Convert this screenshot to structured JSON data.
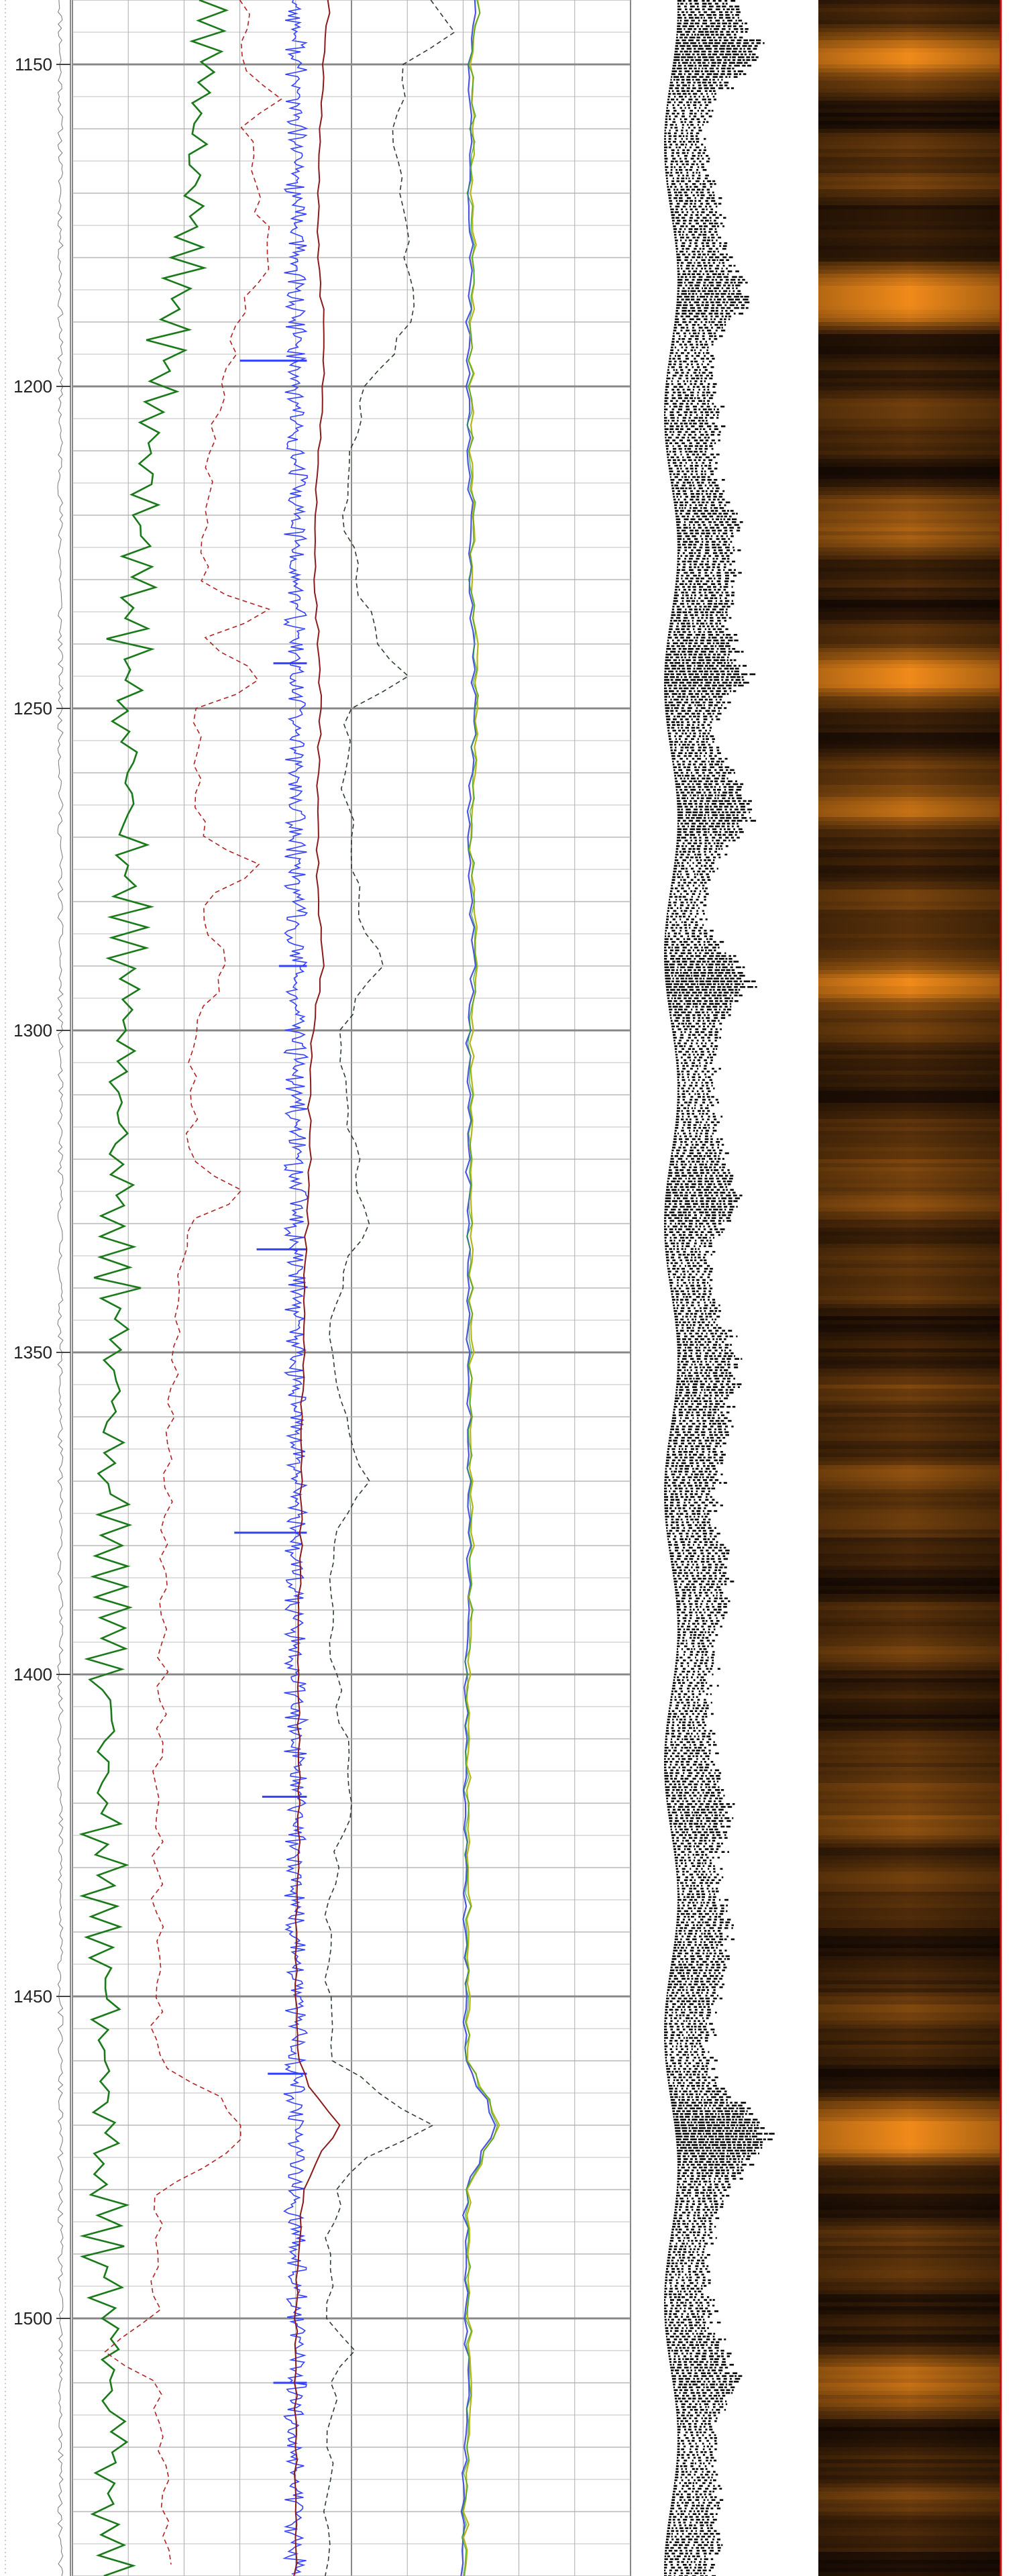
{
  "chart_data": {
    "type": "line",
    "title": "",
    "xlabel": "",
    "ylabel": "",
    "depth_range": [
      1140,
      1540
    ],
    "depth_ticks": [
      1150,
      1200,
      1250,
      1300,
      1350,
      1400,
      1450,
      1500
    ],
    "grid": true,
    "major_grid_interval": 50,
    "minor_grid_interval": 5,
    "track2_columns": 10,
    "colors": {
      "green_curve": "#1a7a1a",
      "red_dashed": "#b22222",
      "blue_wiggle": "#3340ff",
      "dark_red_curve": "#8b1a1a",
      "black_dashed": "#2e3e2e",
      "multicolor_a": "#4b55e0",
      "multicolor_b": "#b5b51a",
      "multicolor_c": "#2aa32a",
      "grid_minor": "#aaaaaa",
      "grid_major": "#888888",
      "copper_dark": "#1a0c04",
      "copper_bright": "#f08a1a"
    },
    "series": [
      {
        "key": "green_curve",
        "style": "solid",
        "depth": [
          1140,
          1150,
          1160,
          1170,
          1180,
          1190,
          1200,
          1210,
          1220,
          1230,
          1240,
          1250,
          1260,
          1270,
          1280,
          1290,
          1300,
          1310,
          1320,
          1330,
          1340,
          1350,
          1360,
          1370,
          1380,
          1390,
          1400,
          1410,
          1420,
          1430,
          1440,
          1450,
          1460,
          1470,
          1480,
          1490,
          1500,
          1510,
          1520,
          1530,
          1540
        ],
        "value": [
          0.52,
          0.5,
          0.46,
          0.44,
          0.4,
          0.36,
          0.32,
          0.28,
          0.25,
          0.22,
          0.2,
          0.19,
          0.19,
          0.2,
          0.21,
          0.2,
          0.19,
          0.18,
          0.17,
          0.16,
          0.16,
          0.15,
          0.14,
          0.13,
          0.13,
          0.12,
          0.12,
          0.12,
          0.11,
          0.11,
          0.12,
          0.12,
          0.11,
          0.11,
          0.11,
          0.11,
          0.12,
          0.13,
          0.14,
          0.14,
          0.14
        ]
      },
      {
        "key": "red_dashed",
        "style": "dashed",
        "depth": [
          1140,
          1150,
          1155,
          1160,
          1170,
          1180,
          1190,
          1200,
          1210,
          1220,
          1230,
          1235,
          1240,
          1245,
          1250,
          1260,
          1270,
          1275,
          1280,
          1290,
          1300,
          1310,
          1320,
          1325,
          1330,
          1340,
          1350,
          1360,
          1370,
          1380,
          1390,
          1400,
          1410,
          1420,
          1430,
          1440,
          1450,
          1460,
          1465,
          1470,
          1475,
          1480,
          1490,
          1500,
          1505,
          1510,
          1520,
          1530,
          1540
        ],
        "value": [
          0.62,
          0.6,
          0.74,
          0.62,
          0.66,
          0.72,
          0.58,
          0.55,
          0.5,
          0.48,
          0.46,
          0.7,
          0.45,
          0.72,
          0.44,
          0.44,
          0.46,
          0.7,
          0.45,
          0.55,
          0.44,
          0.43,
          0.42,
          0.62,
          0.42,
          0.38,
          0.36,
          0.35,
          0.34,
          0.33,
          0.33,
          0.32,
          0.32,
          0.3,
          0.3,
          0.31,
          0.3,
          0.3,
          0.5,
          0.6,
          0.55,
          0.3,
          0.3,
          0.3,
          0.1,
          0.3,
          0.32,
          0.33,
          0.34
        ]
      },
      {
        "key": "blue_wiggle",
        "style": "wiggle",
        "depth": [
          1140,
          1540
        ],
        "value": [
          0.8,
          0.8
        ]
      },
      {
        "key": "dark_red_curve",
        "style": "solid",
        "depth": [
          1140,
          1150,
          1160,
          1170,
          1180,
          1190,
          1200,
          1210,
          1220,
          1230,
          1240,
          1250,
          1260,
          1270,
          1280,
          1290,
          1295,
          1300,
          1310,
          1320,
          1330,
          1340,
          1350,
          1360,
          1370,
          1380,
          1390,
          1400,
          1410,
          1420,
          1430,
          1440,
          1450,
          1460,
          1465,
          1470,
          1475,
          1480,
          1490,
          1500,
          1510,
          1520,
          1530,
          1540
        ],
        "value": [
          0.92,
          0.9,
          0.89,
          0.88,
          0.88,
          0.9,
          0.9,
          0.88,
          0.87,
          0.87,
          0.88,
          0.89,
          0.88,
          0.88,
          0.88,
          0.9,
          0.88,
          0.86,
          0.85,
          0.85,
          0.84,
          0.83,
          0.83,
          0.82,
          0.82,
          0.82,
          0.81,
          0.81,
          0.81,
          0.81,
          0.81,
          0.8,
          0.8,
          0.81,
          0.86,
          0.96,
          0.88,
          0.83,
          0.81,
          0.8,
          0.8,
          0.8,
          0.8,
          0.8
        ]
      },
      {
        "key": "black_dashed",
        "style": "dashed",
        "depth": [
          1140,
          1145,
          1150,
          1160,
          1170,
          1180,
          1190,
          1200,
          1210,
          1220,
          1230,
          1240,
          1245,
          1250,
          1260,
          1270,
          1280,
          1290,
          1300,
          1310,
          1320,
          1330,
          1340,
          1350,
          1360,
          1370,
          1380,
          1390,
          1400,
          1410,
          1420,
          1430,
          1440,
          1450,
          1460,
          1465,
          1470,
          1475,
          1480,
          1490,
          1500,
          1505,
          1510,
          1520,
          1530,
          1540
        ],
        "value": [
          1.3,
          1.35,
          1.2,
          1.15,
          1.18,
          1.2,
          1.22,
          1.05,
          1.0,
          0.98,
          1.02,
          1.1,
          1.2,
          1.0,
          0.98,
          1.0,
          1.02,
          1.1,
          0.96,
          0.98,
          1.02,
          1.06,
          0.95,
          0.92,
          0.98,
          1.05,
          0.93,
          0.92,
          0.94,
          0.98,
          1.0,
          0.94,
          0.92,
          0.92,
          0.94,
          1.1,
          1.3,
          1.05,
          0.95,
          0.92,
          0.92,
          1.0,
          0.94,
          0.92,
          0.92,
          0.92
        ]
      },
      {
        "key": "multicolor_a",
        "style": "solid",
        "depth": [
          1140,
          1150,
          1160,
          1170,
          1180,
          1190,
          1200,
          1210,
          1220,
          1230,
          1240,
          1250,
          1260,
          1270,
          1280,
          1290,
          1300,
          1310,
          1320,
          1330,
          1340,
          1350,
          1360,
          1370,
          1380,
          1390,
          1400,
          1410,
          1420,
          1430,
          1440,
          1450,
          1460,
          1465,
          1470,
          1475,
          1480,
          1490,
          1500,
          1510,
          1520,
          1530,
          1540
        ],
        "value": [
          1.45,
          1.42,
          1.43,
          1.42,
          1.43,
          1.42,
          1.42,
          1.42,
          1.43,
          1.42,
          1.44,
          1.44,
          1.43,
          1.42,
          1.43,
          1.44,
          1.42,
          1.42,
          1.42,
          1.42,
          1.42,
          1.42,
          1.42,
          1.42,
          1.42,
          1.42,
          1.41,
          1.41,
          1.41,
          1.41,
          1.41,
          1.41,
          1.41,
          1.47,
          1.52,
          1.46,
          1.41,
          1.41,
          1.41,
          1.42,
          1.41,
          1.4,
          1.4
        ]
      },
      {
        "key": "multicolor_b",
        "style": "solid",
        "depth": [
          1140,
          1150,
          1160,
          1170,
          1180,
          1190,
          1200,
          1210,
          1220,
          1230,
          1240,
          1250,
          1260,
          1270,
          1280,
          1290,
          1300,
          1310,
          1320,
          1330,
          1340,
          1350,
          1360,
          1370,
          1380,
          1390,
          1400,
          1410,
          1420,
          1430,
          1440,
          1450,
          1460,
          1465,
          1470,
          1475,
          1480,
          1490,
          1500,
          1510,
          1520,
          1530,
          1540
        ],
        "value": [
          1.46,
          1.43,
          1.44,
          1.43,
          1.44,
          1.43,
          1.43,
          1.43,
          1.44,
          1.43,
          1.45,
          1.45,
          1.44,
          1.43,
          1.44,
          1.45,
          1.43,
          1.43,
          1.43,
          1.43,
          1.43,
          1.43,
          1.43,
          1.43,
          1.43,
          1.43,
          1.42,
          1.42,
          1.42,
          1.42,
          1.42,
          1.42,
          1.42,
          1.48,
          1.53,
          1.47,
          1.42,
          1.42,
          1.42,
          1.43,
          1.42,
          1.41,
          1.41
        ]
      }
    ],
    "wiggle_spikes": [
      {
        "depth": 1196,
        "value": 0.6
      },
      {
        "depth": 1243,
        "value": 0.72
      },
      {
        "depth": 1290,
        "value": 0.74
      },
      {
        "depth": 1334,
        "value": 0.66
      },
      {
        "depth": 1378,
        "value": 0.58
      },
      {
        "depth": 1419,
        "value": 0.68
      },
      {
        "depth": 1462,
        "value": 0.7
      },
      {
        "depth": 1510,
        "value": 0.72
      }
    ],
    "image_track": {
      "bright_bands": [
        {
          "depth": 1149,
          "level": 0.7
        },
        {
          "depth": 1186,
          "level": 0.9
        },
        {
          "depth": 1220,
          "level": 0.45
        },
        {
          "depth": 1245,
          "level": 0.85
        },
        {
          "depth": 1266,
          "level": 0.5
        },
        {
          "depth": 1292,
          "level": 0.9
        },
        {
          "depth": 1326,
          "level": 0.45
        },
        {
          "depth": 1368,
          "level": 0.35
        },
        {
          "depth": 1422,
          "level": 0.5
        },
        {
          "depth": 1471,
          "level": 1.0
        },
        {
          "depth": 1510,
          "level": 0.5
        }
      ]
    }
  }
}
